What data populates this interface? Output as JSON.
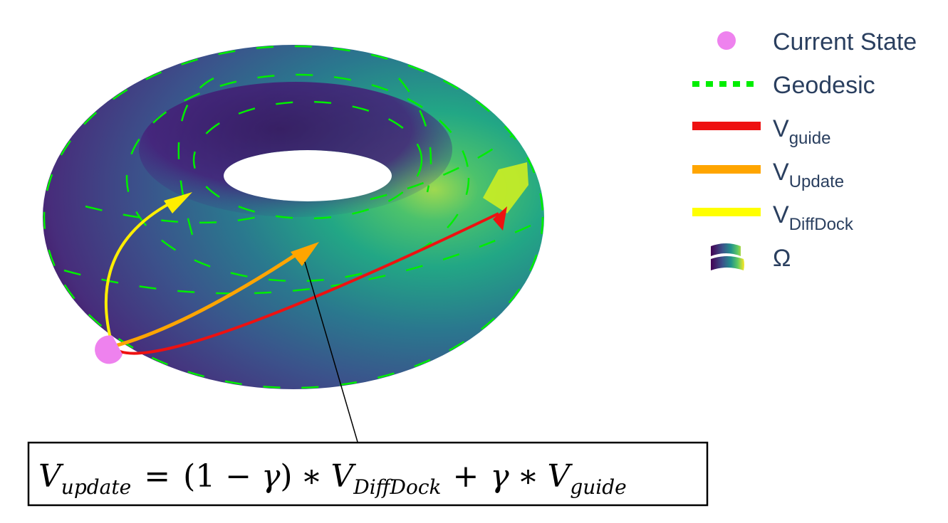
{
  "legend": {
    "current_state": "Current State",
    "geodesic": "Geodesic",
    "v_guide": {
      "base": "V",
      "sub": "guide"
    },
    "v_update": {
      "base": "V",
      "sub": "Update"
    },
    "v_diffdock": {
      "base": "V",
      "sub": "DiffDock"
    },
    "omega": "Ω"
  },
  "equation": {
    "lhs_base": "V",
    "lhs_sub": "update",
    "equals": "=",
    "paren_open": "(1",
    "minus": "−",
    "gamma1": "γ",
    "paren_close": ")",
    "times1": "∗",
    "term1_base": "V",
    "term1_sub": "DiffDock",
    "plus": "+",
    "gamma2": "γ",
    "times2": "∗",
    "term2_base": "V",
    "term2_sub": "guide"
  },
  "colors": {
    "current_state": "#ee82ee",
    "geodesic": "#00ee00",
    "v_guide": "#ee1111",
    "v_update": "#ffa500",
    "v_diffdock": "#ffff00",
    "surface_dark": "#440154",
    "surface_mid": "#3b528b",
    "surface_teal": "#21918c",
    "surface_light": "#5ec962",
    "text": "#2a3f5f"
  }
}
